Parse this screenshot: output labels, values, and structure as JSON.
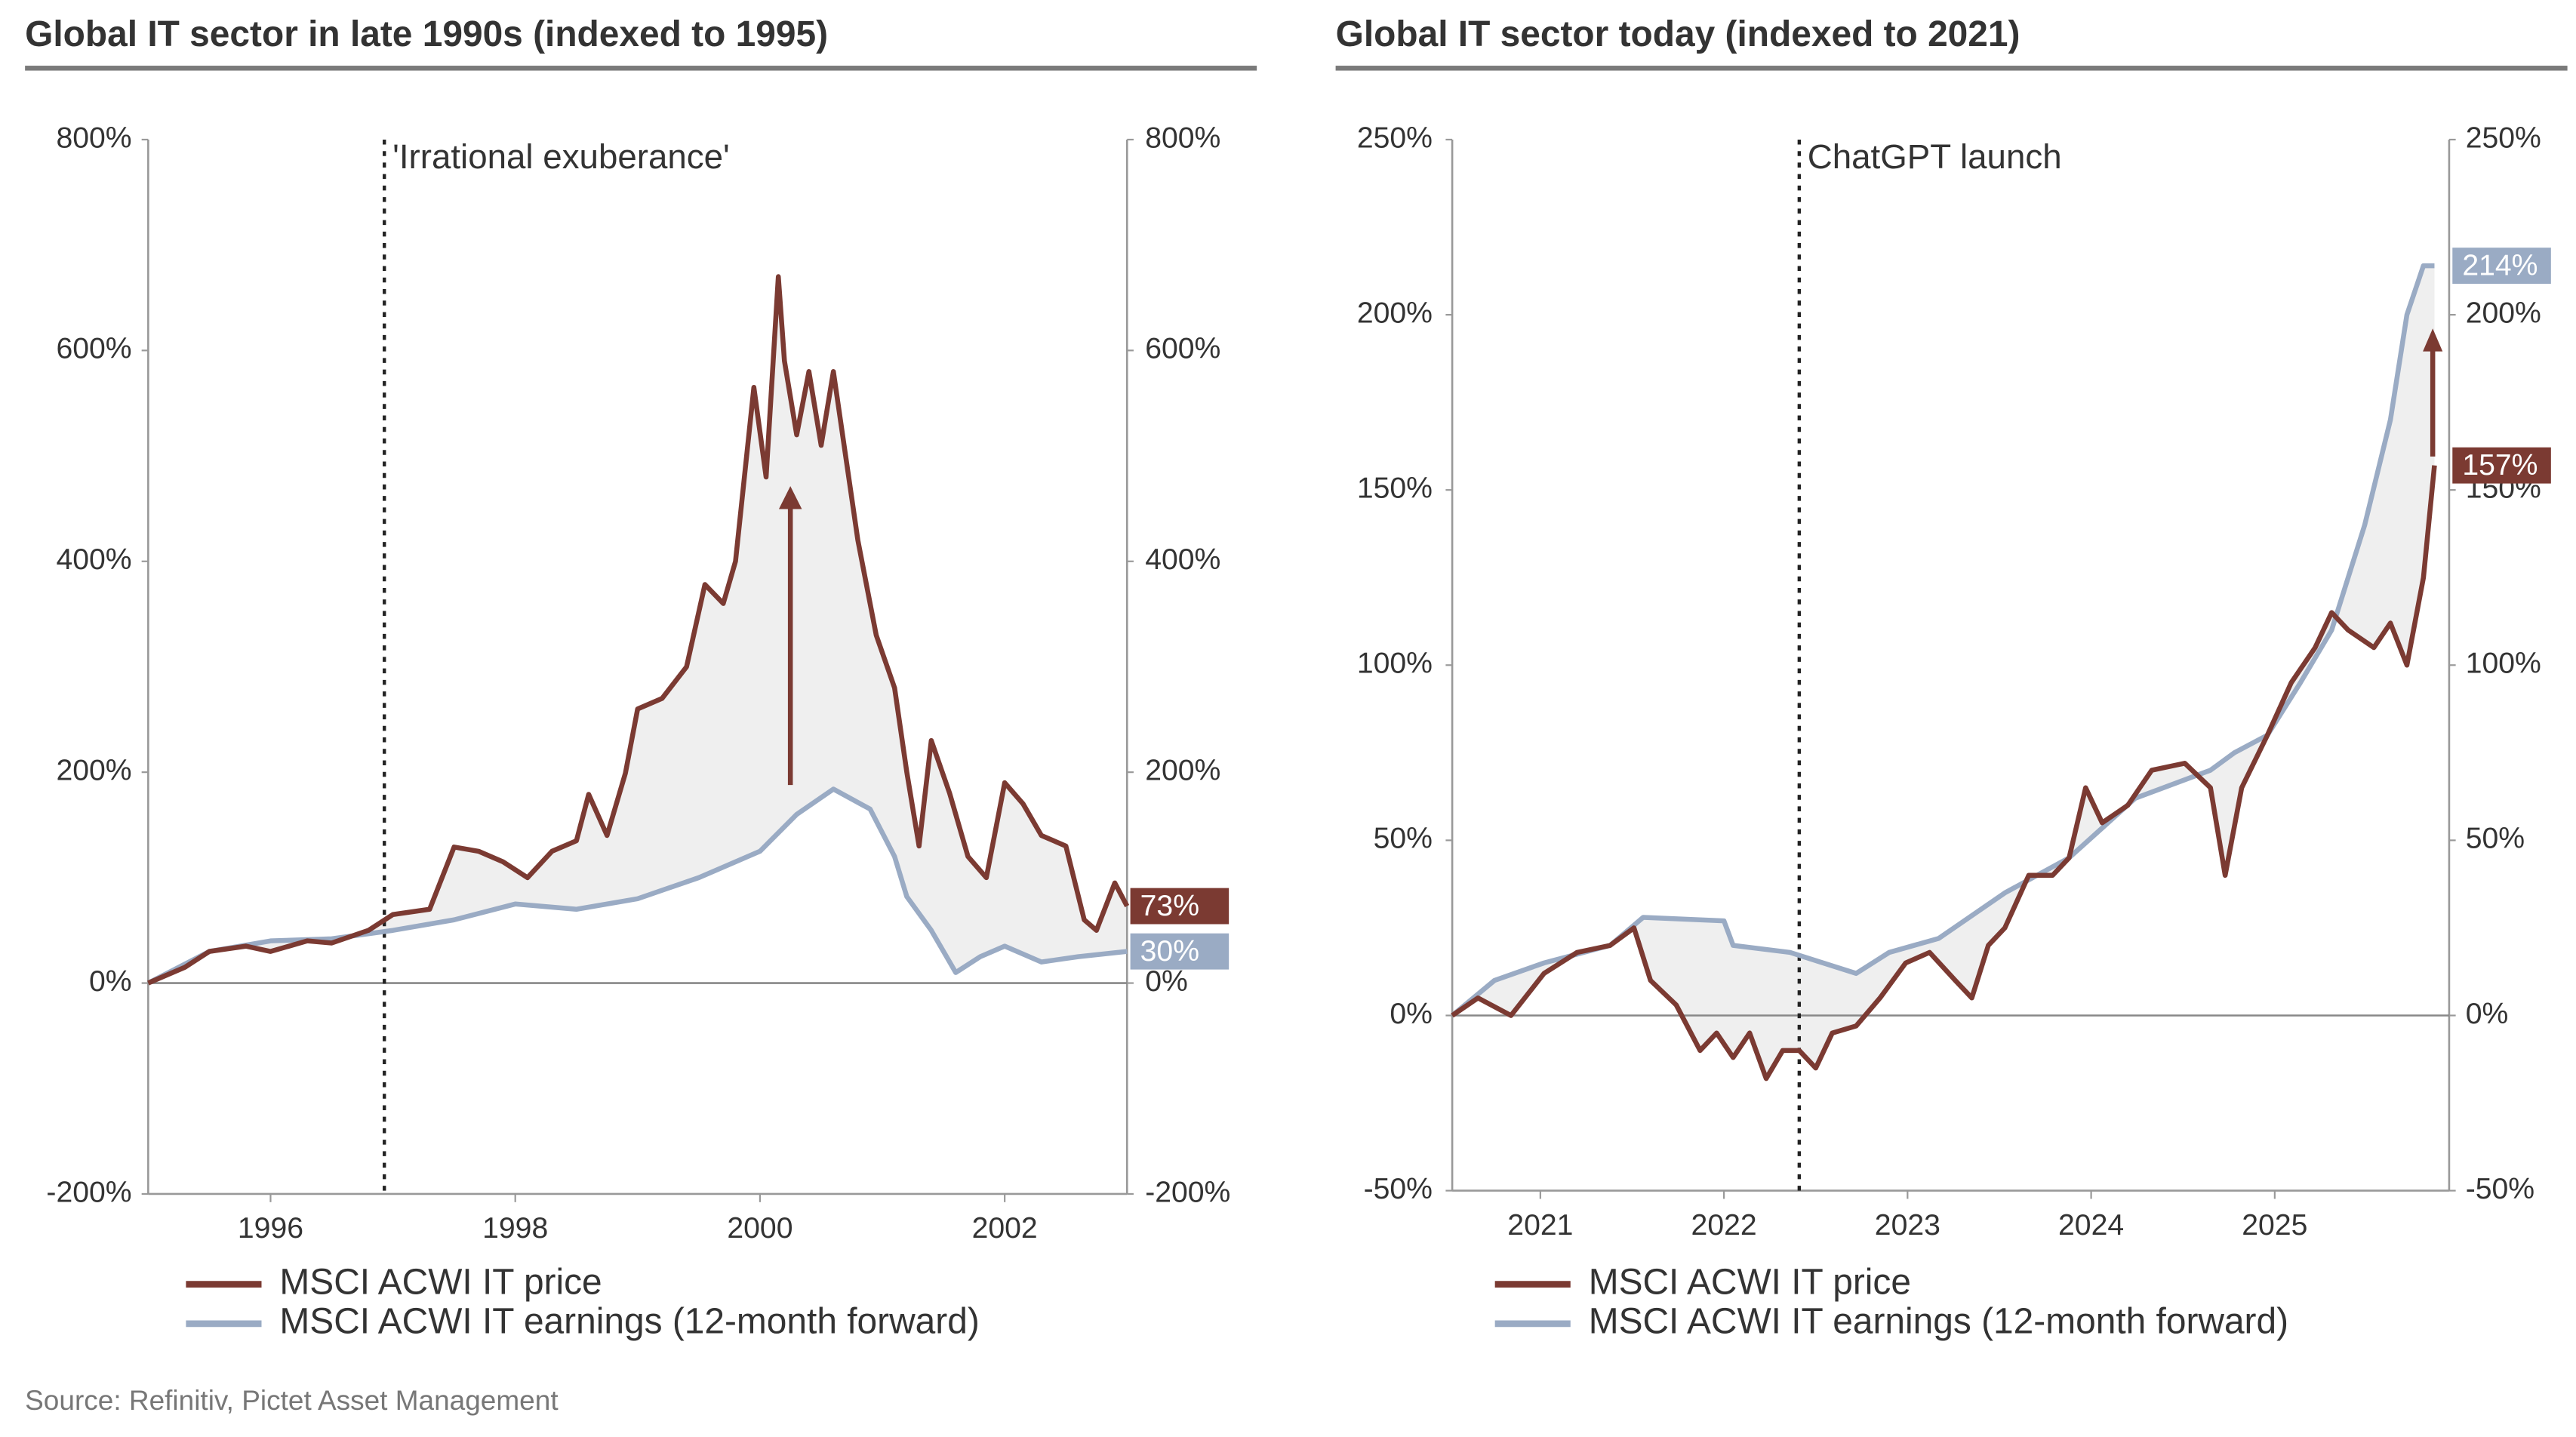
{
  "chart_data": [
    {
      "type": "line",
      "title": "Global IT sector in late 1990s (indexed to 1995)",
      "xlim": [
        1995,
        2003
      ],
      "xticks": [
        1996,
        1998,
        2000,
        2002
      ],
      "ylim": [
        -200,
        800
      ],
      "yticks": [
        {
          "value": -200,
          "label": "-200%"
        },
        {
          "value": 0,
          "label": "0%"
        },
        {
          "value": 200,
          "label": "200%"
        },
        {
          "value": 400,
          "label": "400%"
        },
        {
          "value": 600,
          "label": "600%"
        },
        {
          "value": 800,
          "label": "800%"
        }
      ],
      "y2lim": [
        -200,
        800
      ],
      "y2ticks": [
        {
          "value": -200,
          "label": "-200%"
        },
        {
          "value": 0,
          "label": "0%"
        },
        {
          "value": 200,
          "label": "200%"
        },
        {
          "value": 400,
          "label": "400%"
        },
        {
          "value": 600,
          "label": "600%"
        },
        {
          "value": 800,
          "label": "800%"
        }
      ],
      "annotations": [
        {
          "x": 1996.93,
          "label": "'Irrational exuberance'"
        }
      ],
      "series": [
        {
          "name": "MSCI ACWI IT price",
          "color": "#7b3a32",
          "x": [
            1995,
            1995.3,
            1995.5,
            1995.8,
            1996,
            1996.3,
            1996.5,
            1996.8,
            1997,
            1997.3,
            1997.5,
            1997.7,
            1997.9,
            1998.1,
            1998.3,
            1998.5,
            1998.6,
            1998.75,
            1998.9,
            1999,
            1999.2,
            1999.4,
            1999.55,
            1999.7,
            1999.8,
            1999.95,
            2000.05,
            2000.15,
            2000.2,
            2000.3,
            2000.4,
            2000.5,
            2000.6,
            2000.7,
            2000.8,
            2000.95,
            2001.1,
            2001.2,
            2001.3,
            2001.4,
            2001.55,
            2001.7,
            2001.85,
            2002,
            2002.15,
            2002.3,
            2002.5,
            2002.65,
            2002.75,
            2002.9,
            2003
          ],
          "values": [
            0,
            15,
            30,
            35,
            30,
            40,
            38,
            50,
            65,
            70,
            129,
            125,
            115,
            100,
            125,
            135,
            179,
            140,
            199,
            260,
            270,
            300,
            378,
            360,
            400,
            565,
            480,
            670,
            590,
            520,
            580,
            510,
            580,
            500,
            420,
            330,
            280,
            200,
            130,
            230,
            180,
            120,
            100,
            190,
            170,
            140,
            130,
            60,
            50,
            95,
            73
          ],
          "end_label": {
            "value": 73,
            "label": "73%"
          }
        },
        {
          "name": "MSCI ACWI IT earnings (12-month forward)",
          "color": "#9aabc4",
          "x": [
            1995,
            1995.5,
            1996,
            1996.5,
            1997,
            1997.5,
            1998,
            1998.5,
            1999,
            1999.5,
            2000,
            2000.3,
            2000.6,
            2000.9,
            2001.1,
            2001.2,
            2001.4,
            2001.6,
            2001.8,
            2002,
            2002.3,
            2002.6,
            2003
          ],
          "values": [
            0,
            30,
            40,
            42,
            50,
            60,
            75,
            70,
            80,
            100,
            125,
            160,
            184,
            165,
            120,
            82,
            50,
            10,
            25,
            35,
            20,
            25,
            30
          ],
          "end_label": {
            "value": 30,
            "label": "30%"
          }
        }
      ]
    },
    {
      "type": "line",
      "title": "Global IT sector today (indexed to 2021)",
      "xlim": [
        2020.52,
        2025.95
      ],
      "xticks": [
        2021,
        2022,
        2023,
        2024,
        2025
      ],
      "ylim": [
        -50,
        250
      ],
      "yticks": [
        {
          "value": -50,
          "label": "-50%"
        },
        {
          "value": 0,
          "label": "0%"
        },
        {
          "value": 50,
          "label": "50%"
        },
        {
          "value": 100,
          "label": "100%"
        },
        {
          "value": 150,
          "label": "150%"
        },
        {
          "value": 200,
          "label": "200%"
        },
        {
          "value": 250,
          "label": "250%"
        }
      ],
      "y2lim": [
        -50,
        250
      ],
      "y2ticks": [
        {
          "value": -50,
          "label": "-50%"
        },
        {
          "value": 0,
          "label": "0%"
        },
        {
          "value": 50,
          "label": "50%"
        },
        {
          "value": 100,
          "label": "100%"
        },
        {
          "value": 150,
          "label": "150%"
        },
        {
          "value": 200,
          "label": "200%"
        },
        {
          "value": 250,
          "label": "250%"
        }
      ],
      "annotations": [
        {
          "x": 2022.41,
          "label": "ChatGPT launch"
        }
      ],
      "series": [
        {
          "name": "MSCI ACWI IT price",
          "color": "#7b3a32",
          "x": [
            2020.52,
            2020.66,
            2020.84,
            2021.02,
            2021.2,
            2021.38,
            2021.51,
            2021.6,
            2021.74,
            2021.87,
            2021.96,
            2022.05,
            2022.14,
            2022.23,
            2022.32,
            2022.41,
            2022.5,
            2022.59,
            2022.72,
            2022.85,
            2022.99,
            2023.12,
            2023.26,
            2023.35,
            2023.44,
            2023.53,
            2023.66,
            2023.79,
            2023.88,
            2023.97,
            2024.06,
            2024.2,
            2024.33,
            2024.51,
            2024.65,
            2024.73,
            2024.82,
            2024.96,
            2025.09,
            2025.22,
            2025.31,
            2025.4,
            2025.54,
            2025.63,
            2025.72,
            2025.81,
            2025.87
          ],
          "values": [
            0,
            5,
            0,
            12,
            18,
            20,
            25,
            10,
            3,
            -10,
            -5,
            -12,
            -5,
            -18,
            -10,
            -10,
            -15,
            -5,
            -3,
            5,
            15,
            18,
            10,
            5,
            20,
            25,
            40,
            40,
            45,
            65,
            55,
            60,
            70,
            72,
            65,
            40,
            65,
            80,
            95,
            105,
            115,
            110,
            105,
            112,
            100,
            125,
            157
          ],
          "end_label": {
            "value": 157,
            "label": "157%"
          }
        },
        {
          "name": "MSCI ACWI IT earnings (12-month forward)",
          "color": "#9aabc4",
          "x": [
            2020.52,
            2020.75,
            2021.02,
            2021.38,
            2021.56,
            2022,
            2022.05,
            2022.36,
            2022.54,
            2022.72,
            2022.9,
            2023.17,
            2023.53,
            2023.88,
            2024.24,
            2024.65,
            2024.78,
            2024.96,
            2025.14,
            2025.31,
            2025.49,
            2025.63,
            2025.72,
            2025.81,
            2025.87
          ],
          "values": [
            0,
            10,
            15,
            20,
            28,
            27,
            20,
            18,
            15,
            12,
            18,
            22,
            35,
            45,
            62,
            70,
            75,
            80,
            95,
            110,
            140,
            170,
            200,
            214,
            214
          ],
          "end_label": {
            "value": 214,
            "label": "214%"
          }
        }
      ]
    }
  ],
  "source": "Source: Refinitiv, Pictet Asset Management"
}
